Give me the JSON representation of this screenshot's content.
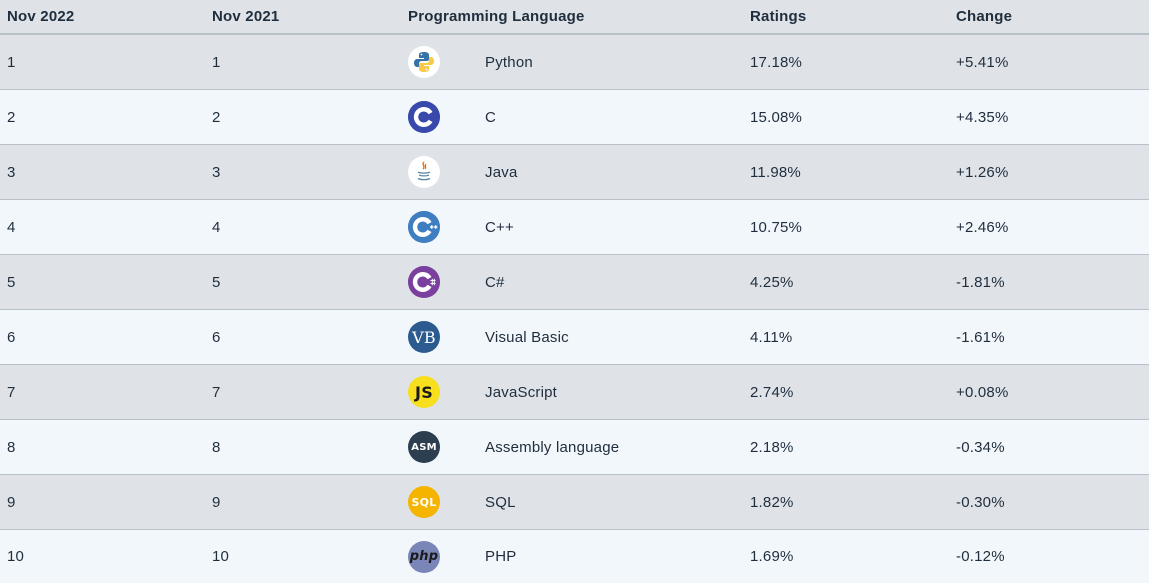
{
  "header": {
    "current": "Nov 2022",
    "previous": "Nov 2021",
    "language": "Programming Language",
    "ratings": "Ratings",
    "change": "Change"
  },
  "rows": [
    {
      "current": "1",
      "previous": "1",
      "language": "Python",
      "rating": "17.18%",
      "change": "+5.41%",
      "icon": "python-icon"
    },
    {
      "current": "2",
      "previous": "2",
      "language": "C",
      "rating": "15.08%",
      "change": "+4.35%",
      "icon": "c-icon"
    },
    {
      "current": "3",
      "previous": "3",
      "language": "Java",
      "rating": "11.98%",
      "change": "+1.26%",
      "icon": "java-icon"
    },
    {
      "current": "4",
      "previous": "4",
      "language": "C++",
      "rating": "10.75%",
      "change": "+2.46%",
      "icon": "cpp-icon"
    },
    {
      "current": "5",
      "previous": "5",
      "language": "C#",
      "rating": "4.25%",
      "change": "-1.81%",
      "icon": "csharp-icon"
    },
    {
      "current": "6",
      "previous": "6",
      "language": "Visual Basic",
      "rating": "4.11%",
      "change": "-1.61%",
      "icon": "visual-basic-icon",
      "icon_text": "VB"
    },
    {
      "current": "7",
      "previous": "7",
      "language": "JavaScript",
      "rating": "2.74%",
      "change": "+0.08%",
      "icon": "javascript-icon",
      "icon_text": "JS"
    },
    {
      "current": "8",
      "previous": "8",
      "language": "Assembly language",
      "rating": "2.18%",
      "change": "-0.34%",
      "icon": "assembly-icon",
      "icon_text": "ASM"
    },
    {
      "current": "9",
      "previous": "9",
      "language": "SQL",
      "rating": "1.82%",
      "change": "-0.30%",
      "icon": "sql-icon",
      "icon_text": "SQL"
    },
    {
      "current": "10",
      "previous": "10",
      "language": "PHP",
      "rating": "1.69%",
      "change": "-0.12%",
      "icon": "php-icon",
      "icon_text": "php"
    }
  ],
  "colors": {
    "row_dark": "#dfe3e7",
    "row_light": "#f2f7fb",
    "c_blue": "#3949ab",
    "cpp_blue": "#3f7fc1",
    "csharp_purple": "#7b3f9e",
    "vb_blue": "#2b5b8f",
    "js_yellow": "#f7df1e",
    "asm_navy": "#2c3e50",
    "sql_orange": "#f5b400",
    "php_violet": "#7a86b8"
  }
}
